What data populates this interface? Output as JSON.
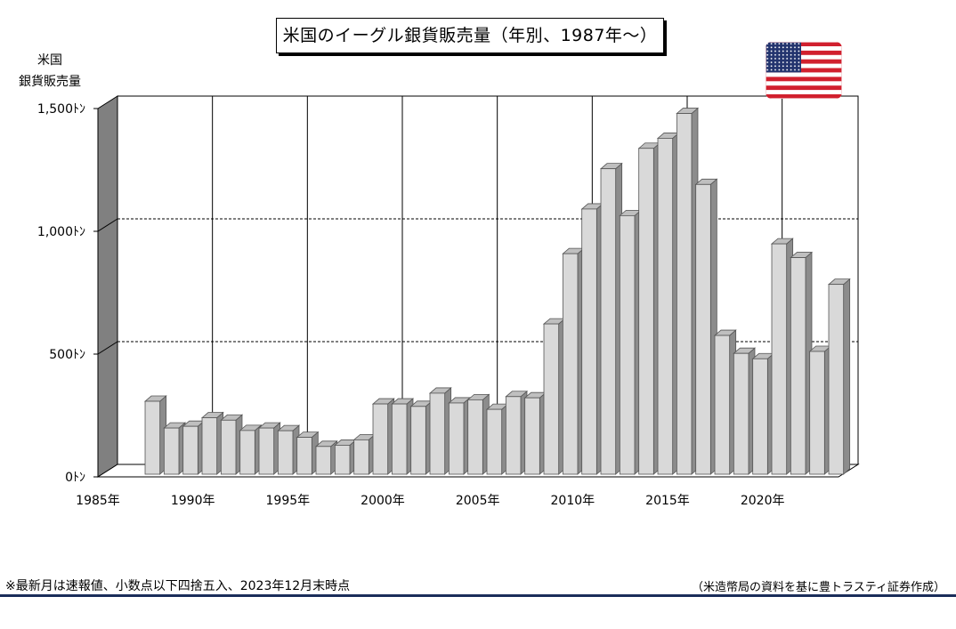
{
  "title": "米国のイーグル銀貨販売量（年別、1987年～）",
  "footnote": "※最新月は速報値、小数点以下四捨五入、2023年12月末時点",
  "source": "（米造幣局の資料を基に豊トラスティ証券作成）",
  "flag_icon": "us-flag-icon",
  "colors": {
    "bar_face": "#d9d9d9",
    "bar_side": "#8c8c8c",
    "bar_top": "#bfbfbf",
    "wall": "#808080",
    "footer_line": "#1a2d5a"
  },
  "chart_data": {
    "type": "bar",
    "title": "米国のイーグル銀貨販売量（年別、1987年～）",
    "ylabel_lines": [
      "米国",
      "銀貨販売量"
    ],
    "ylim": [
      0,
      1500
    ],
    "yticks": [
      {
        "value": 0,
        "label": "0ﾄﾝ"
      },
      {
        "value": 500,
        "label": "500ﾄﾝ"
      },
      {
        "value": 1000,
        "label": "1,000ﾄﾝ"
      },
      {
        "value": 1500,
        "label": "1,500ﾄﾝ"
      }
    ],
    "xticks": [
      {
        "year": 1985,
        "label": "1985年"
      },
      {
        "year": 1990,
        "label": "1990年"
      },
      {
        "year": 1995,
        "label": "1995年"
      },
      {
        "year": 2000,
        "label": "2000年"
      },
      {
        "year": 2005,
        "label": "2005年"
      },
      {
        "year": 2010,
        "label": "2010年"
      },
      {
        "year": 2015,
        "label": "2015年"
      },
      {
        "year": 2020,
        "label": "2020年"
      }
    ],
    "x_range": [
      1985,
      2024
    ],
    "grid": "dashed horizontal at 500 and 1000, solid vertical every 5 years",
    "years": [
      1987,
      1988,
      1989,
      1990,
      1991,
      1992,
      1993,
      1994,
      1995,
      1996,
      1997,
      1998,
      1999,
      2000,
      2001,
      2002,
      2003,
      2004,
      2005,
      2006,
      2007,
      2008,
      2009,
      2010,
      2011,
      2012,
      2013,
      2014,
      2015,
      2016,
      2017,
      2018,
      2019,
      2020,
      2021,
      2022,
      2023
    ],
    "values": [
      297,
      188,
      195,
      230,
      220,
      178,
      188,
      177,
      150,
      113,
      118,
      140,
      286,
      286,
      276,
      330,
      290,
      303,
      264,
      316,
      311,
      612,
      898,
      1080,
      1244,
      1053,
      1327,
      1368,
      1469,
      1180,
      565,
      492,
      470,
      938,
      882,
      500,
      773
    ]
  }
}
